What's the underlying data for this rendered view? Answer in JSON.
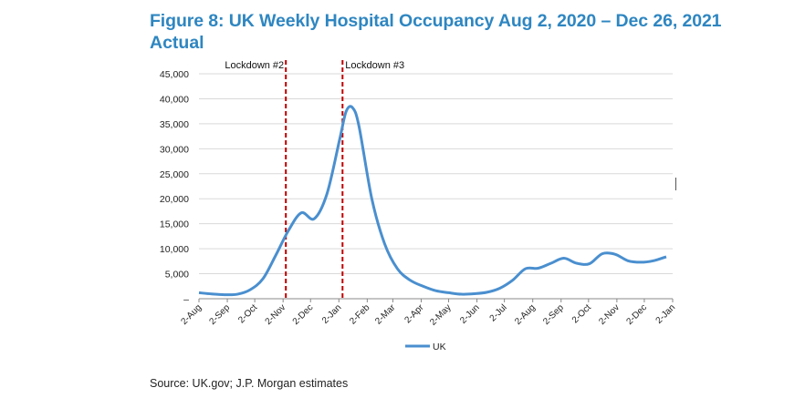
{
  "chart_data": {
    "type": "line",
    "title": "Figure 8: UK Weekly Hospital Occupancy Aug 2, 2020 – Dec 26, 2021",
    "subtitle": "Actual",
    "xlabel": "",
    "ylabel": "",
    "ylim": [
      0,
      45000
    ],
    "y_ticks": [
      "–",
      "5,000",
      "10,000",
      "15,000",
      "20,000",
      "25,000",
      "30,000",
      "35,000",
      "40,000",
      "45,000"
    ],
    "x_ticks": [
      "2-Aug",
      "2-Sep",
      "2-Oct",
      "2-Nov",
      "2-Dec",
      "2-Jan",
      "2-Feb",
      "2-Mar",
      "2-Apr",
      "2-May",
      "2-Jun",
      "2-Jul",
      "2-Aug",
      "2-Sep",
      "2-Oct",
      "2-Nov",
      "2-Dec",
      "2-Jan"
    ],
    "x_tick_dates": [
      "2020-08-02",
      "2020-09-02",
      "2020-10-02",
      "2020-11-02",
      "2020-12-02",
      "2021-01-02",
      "2021-02-02",
      "2021-03-02",
      "2021-04-02",
      "2021-05-02",
      "2021-06-02",
      "2021-07-02",
      "2021-08-02",
      "2021-09-02",
      "2021-10-02",
      "2021-11-02",
      "2021-12-02",
      "2022-01-02"
    ],
    "grid": "horizontal",
    "legend": "bottom",
    "series": [
      {
        "name": "UK",
        "color": "#4a8fcf",
        "x": [
          "2020-08-02",
          "2020-08-16",
          "2020-08-30",
          "2020-09-13",
          "2020-09-27",
          "2020-10-11",
          "2020-10-25",
          "2020-11-08",
          "2020-11-22",
          "2020-12-06",
          "2020-12-20",
          "2021-01-03",
          "2021-01-10",
          "2021-01-17",
          "2021-01-24",
          "2021-02-07",
          "2021-02-21",
          "2021-03-07",
          "2021-03-21",
          "2021-04-04",
          "2021-04-18",
          "2021-05-02",
          "2021-05-16",
          "2021-05-30",
          "2021-06-13",
          "2021-06-27",
          "2021-07-11",
          "2021-07-25",
          "2021-08-08",
          "2021-08-22",
          "2021-09-05",
          "2021-09-19",
          "2021-10-03",
          "2021-10-17",
          "2021-10-31",
          "2021-11-14",
          "2021-11-28",
          "2021-12-12",
          "2021-12-26"
        ],
        "values": [
          1200,
          950,
          800,
          900,
          1800,
          4000,
          8700,
          13700,
          17200,
          16000,
          21000,
          32000,
          37500,
          38200,
          34500,
          20000,
          11000,
          6000,
          3700,
          2500,
          1600,
          1200,
          900,
          1000,
          1300,
          2100,
          3700,
          6000,
          6100,
          7100,
          8100,
          7100,
          7000,
          9000,
          8900,
          7600,
          7300,
          7600,
          8400
        ]
      }
    ],
    "annotations": [
      {
        "label": "Lockdown #2",
        "x": "2020-11-05"
      },
      {
        "label": "Lockdown #3",
        "x": "2021-01-06"
      }
    ],
    "source": "Source: UK.gov; J.P. Morgan estimates"
  }
}
